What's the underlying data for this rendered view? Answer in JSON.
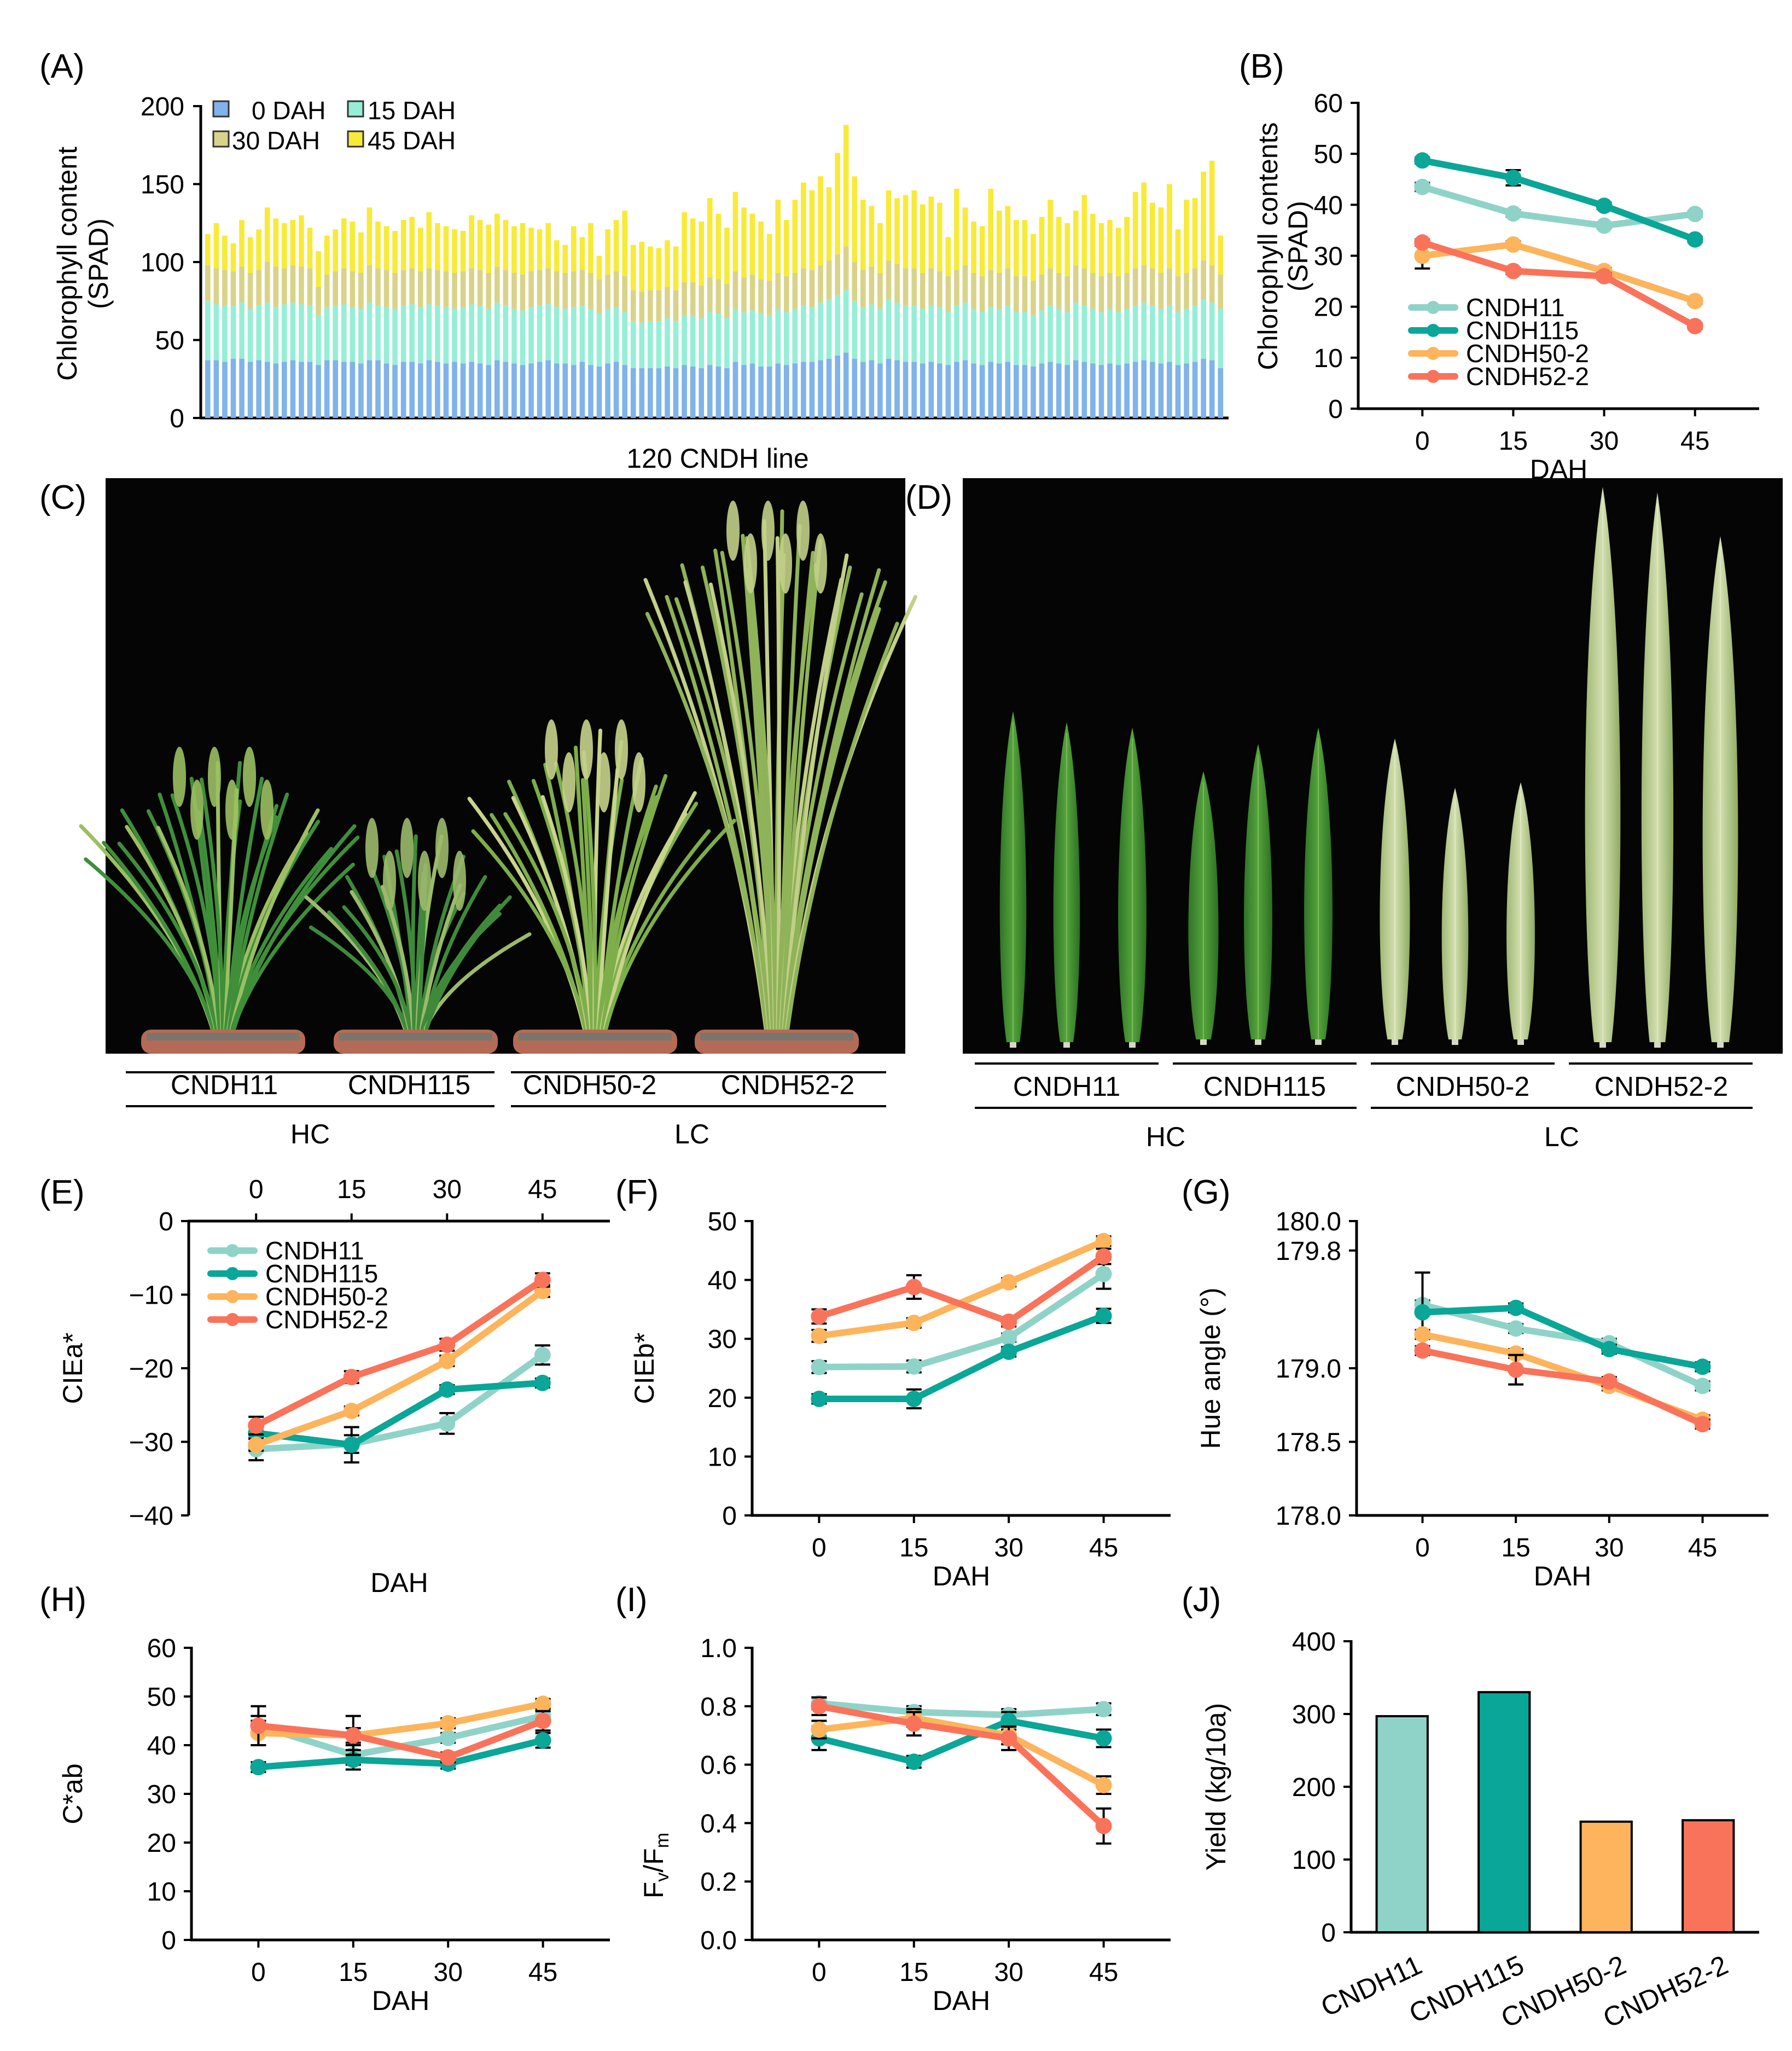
{
  "colors": {
    "CNDH11": "#8fd3c8",
    "CNDH115": "#0aa697",
    "CNDH50-2": "#fdb45c",
    "CNDH52-2": "#f9735a",
    "dah0": "#7fb3ea",
    "dah15": "#95eed6",
    "dah30": "#d9d389",
    "dah45": "#f8ea38",
    "photo_bg": "#050505",
    "pot": "#b56a55",
    "leaf_dark": "#3d8a2e",
    "leaf_light": "#b8cc8a"
  },
  "chart_data": [
    {
      "panel": "(A)",
      "type": "bar",
      "stacked": true,
      "xlabel": "120 CNDH line",
      "ylabel": "Chlorophyll content (SPAD)",
      "ylim": [
        0,
        200
      ],
      "yticks": [
        "0",
        "50",
        "100",
        "150",
        "200"
      ],
      "legend": [
        "0 DAH",
        "15 DAH",
        "30 DAH",
        "45 DAH"
      ],
      "n_lines": 120,
      "cumulative": {
        "0 DAH": [
          37,
          37,
          36,
          38,
          38,
          36,
          37,
          36,
          35,
          36,
          37,
          36,
          36,
          34,
          37,
          37,
          36,
          36,
          35,
          37,
          37,
          35,
          34,
          36,
          36,
          35,
          37,
          36,
          35,
          36,
          35,
          36,
          35,
          34,
          37,
          36,
          35,
          34,
          35,
          36,
          37,
          35,
          35,
          34,
          36,
          34,
          33,
          35,
          36,
          34,
          32,
          32,
          32,
          32,
          33,
          32,
          34,
          33,
          32,
          34,
          33,
          32,
          36,
          34,
          35,
          33,
          33,
          35,
          34,
          35,
          36,
          36,
          37,
          38,
          40,
          42,
          38,
          36,
          37,
          35,
          38,
          37,
          36,
          36,
          35,
          36,
          35,
          34,
          36,
          37,
          35,
          34,
          36,
          35,
          36,
          34,
          34,
          33,
          35,
          36,
          35,
          34,
          37,
          36,
          35,
          34,
          35,
          34,
          35,
          36,
          37,
          36,
          35,
          36,
          34,
          35,
          36,
          38,
          37,
          32
        ],
        "15 DAH": [
          75,
          73,
          72,
          72,
          74,
          70,
          72,
          74,
          71,
          73,
          74,
          73,
          72,
          66,
          71,
          72,
          73,
          71,
          70,
          74,
          72,
          71,
          70,
          72,
          73,
          71,
          73,
          72,
          71,
          70,
          71,
          73,
          72,
          70,
          74,
          72,
          70,
          69,
          71,
          72,
          73,
          71,
          70,
          71,
          72,
          70,
          67,
          70,
          71,
          68,
          62,
          61,
          62,
          62,
          64,
          62,
          66,
          66,
          64,
          68,
          67,
          64,
          70,
          68,
          69,
          67,
          66,
          70,
          68,
          70,
          72,
          71,
          74,
          76,
          79,
          82,
          75,
          71,
          73,
          70,
          76,
          74,
          72,
          72,
          70,
          72,
          71,
          68,
          72,
          74,
          70,
          68,
          71,
          70,
          72,
          68,
          68,
          66,
          69,
          72,
          70,
          68,
          74,
          72,
          70,
          68,
          70,
          68,
          70,
          72,
          74,
          72,
          70,
          72,
          68,
          70,
          72,
          76,
          74,
          70
        ],
        "30 DAH": [
          98,
          96,
          95,
          94,
          97,
          93,
          95,
          100,
          97,
          96,
          98,
          97,
          96,
          84,
          92,
          94,
          96,
          94,
          93,
          98,
          96,
          95,
          93,
          95,
          96,
          94,
          96,
          95,
          94,
          93,
          94,
          96,
          95,
          93,
          97,
          95,
          93,
          92,
          94,
          95,
          96,
          94,
          93,
          94,
          95,
          93,
          89,
          92,
          94,
          91,
          82,
          81,
          82,
          82,
          84,
          82,
          87,
          87,
          85,
          90,
          89,
          86,
          94,
          90,
          92,
          89,
          88,
          93,
          91,
          93,
          96,
          95,
          98,
          101,
          105,
          110,
          100,
          95,
          97,
          93,
          101,
          99,
          96,
          96,
          93,
          96,
          94,
          91,
          95,
          98,
          93,
          91,
          95,
          93,
          96,
          91,
          91,
          88,
          92,
          96,
          93,
          91,
          98,
          96,
          93,
          91,
          93,
          91,
          93,
          96,
          98,
          96,
          93,
          96,
          91,
          93,
          96,
          101,
          98,
          92
        ],
        "45 DAH": [
          118,
          125,
          117,
          112,
          127,
          116,
          121,
          135,
          128,
          125,
          127,
          130,
          122,
          107,
          117,
          121,
          128,
          126,
          119,
          135,
          126,
          123,
          120,
          127,
          129,
          122,
          132,
          125,
          123,
          121,
          120,
          130,
          127,
          124,
          131,
          127,
          123,
          125,
          122,
          121,
          125,
          114,
          111,
          123,
          116,
          125,
          104,
          121,
          127,
          133,
          111,
          113,
          110,
          109,
          114,
          110,
          132,
          128,
          126,
          141,
          131,
          122,
          145,
          135,
          131,
          126,
          118,
          140,
          127,
          140,
          151,
          146,
          155,
          148,
          170,
          188,
          155,
          140,
          136,
          125,
          146,
          141,
          143,
          146,
          137,
          142,
          138,
          116,
          147,
          135,
          126,
          123,
          147,
          133,
          136,
          127,
          127,
          118,
          129,
          140,
          129,
          125,
          133,
          143,
          131,
          125,
          127,
          122,
          129,
          145,
          151,
          138,
          135,
          150,
          121,
          140,
          141,
          158,
          165,
          117
        ]
      }
    },
    {
      "panel": "(B)",
      "type": "line",
      "xlabel": "DAH",
      "ylabel": "Chlorophyll contents (SPAD)",
      "x": [
        0,
        15,
        30,
        45
      ],
      "ylim": [
        0,
        60
      ],
      "yticks": [
        "0",
        "10",
        "20",
        "30",
        "40",
        "50",
        "60"
      ],
      "xticks": [
        "0",
        "15",
        "30",
        "45"
      ],
      "legend_position": "bottom-left",
      "series": [
        {
          "name": "CNDH11",
          "values": [
            43.5,
            38.3,
            35.9,
            38.2
          ],
          "err": [
            0.8,
            0.6,
            0.5,
            0.5
          ]
        },
        {
          "name": "CNDH115",
          "values": [
            48.7,
            45.3,
            39.8,
            33.2
          ],
          "err": [
            0.6,
            1.5,
            0.6,
            0.5
          ]
        },
        {
          "name": "CNDH50-2",
          "values": [
            30.0,
            32.2,
            27.0,
            21.1
          ],
          "err": [
            2.5,
            0.6,
            0.6,
            0.5
          ]
        },
        {
          "name": "CNDH52-2",
          "values": [
            32.6,
            27.0,
            26.0,
            16.2
          ],
          "err": [
            0.6,
            0.6,
            0.6,
            0.5
          ]
        }
      ]
    },
    {
      "panel": "(E)",
      "type": "line",
      "xlabel": "DAH",
      "ylabel": "CIEa*",
      "x": [
        0,
        15,
        30,
        45
      ],
      "xaxis_position": "top",
      "ylim": [
        -40,
        0
      ],
      "yticks": [
        "0",
        "−10",
        "−20",
        "−30",
        "−40"
      ],
      "xticks": [
        "0",
        "15",
        "30",
        "45"
      ],
      "legend_position": "top-left",
      "series": [
        {
          "name": "CNDH11",
          "values": [
            -31.0,
            -30.3,
            -27.5,
            -18.2
          ],
          "err": [
            1.5,
            1.2,
            1.4,
            1.3
          ]
        },
        {
          "name": "CNDH115",
          "values": [
            -28.8,
            -30.4,
            -22.9,
            -22.0
          ],
          "err": [
            1.3,
            2.4,
            0.6,
            0.6
          ]
        },
        {
          "name": "CNDH50-2",
          "values": [
            -30.4,
            -25.8,
            -19.0,
            -9.5
          ],
          "err": [
            0.8,
            0.6,
            0.7,
            0.8
          ]
        },
        {
          "name": "CNDH52-2",
          "values": [
            -27.8,
            -21.2,
            -16.8,
            -8.0
          ],
          "err": [
            1.2,
            0.8,
            0.8,
            0.9
          ]
        }
      ]
    },
    {
      "panel": "(F)",
      "type": "line",
      "xlabel": "DAH",
      "ylabel": "CIEb*",
      "x": [
        0,
        15,
        30,
        45
      ],
      "ylim": [
        0,
        50
      ],
      "yticks": [
        "0",
        "10",
        "20",
        "30",
        "40",
        "50"
      ],
      "xticks": [
        "0",
        "15",
        "30",
        "45"
      ],
      "series": [
        {
          "name": "CNDH11",
          "values": [
            25.2,
            25.3,
            30.2,
            41.0
          ],
          "err": [
            1.0,
            1.0,
            0.7,
            2.5
          ]
        },
        {
          "name": "CNDH115",
          "values": [
            19.8,
            19.8,
            27.8,
            33.9
          ],
          "err": [
            0.8,
            1.6,
            0.8,
            1.2
          ]
        },
        {
          "name": "CNDH50-2",
          "values": [
            30.5,
            32.7,
            39.6,
            46.6
          ],
          "err": [
            1.0,
            0.8,
            0.7,
            0.8
          ]
        },
        {
          "name": "CNDH52-2",
          "values": [
            33.8,
            38.8,
            32.9,
            44.0
          ],
          "err": [
            1.2,
            2.0,
            0.8,
            1.3
          ]
        }
      ]
    },
    {
      "panel": "(G)",
      "type": "line",
      "xlabel": "DAH",
      "ylabel": "Hue angle (°)",
      "x": [
        0,
        15,
        30,
        45
      ],
      "ylim": [
        178.0,
        180.0
      ],
      "yticks": [
        "178.0",
        "178.5",
        "179.0",
        "179.8",
        "180.0"
      ],
      "xticks": [
        "0",
        "15",
        "30",
        "45"
      ],
      "series": [
        {
          "name": "CNDH11",
          "values": [
            179.43,
            179.27,
            179.17,
            178.88
          ],
          "err": [
            0.03,
            0.03,
            0.03,
            0.03
          ]
        },
        {
          "name": "CNDH115",
          "values": [
            179.38,
            179.41,
            179.13,
            179.01
          ],
          "err": [
            0.27,
            0.03,
            0.03,
            0.03
          ]
        },
        {
          "name": "CNDH50-2",
          "values": [
            179.23,
            179.1,
            178.88,
            178.65
          ],
          "err": [
            0.03,
            0.03,
            0.03,
            0.03
          ]
        },
        {
          "name": "CNDH52-2",
          "values": [
            179.12,
            178.99,
            178.91,
            178.62
          ],
          "err": [
            0.03,
            0.1,
            0.03,
            0.03
          ]
        }
      ]
    },
    {
      "panel": "(H)",
      "type": "line",
      "xlabel": "DAH",
      "ylabel": "C*ab",
      "x": [
        0,
        15,
        30,
        45
      ],
      "ylim": [
        0,
        60
      ],
      "yticks": [
        "0",
        "10",
        "20",
        "30",
        "40",
        "50",
        "60"
      ],
      "xticks": [
        "0",
        "15",
        "30",
        "45"
      ],
      "series": [
        {
          "name": "CNDH11",
          "values": [
            44.0,
            38.0,
            41.5,
            46.0
          ],
          "err": [
            2.0,
            2.0,
            1.0,
            1.0
          ]
        },
        {
          "name": "CNDH115",
          "values": [
            35.5,
            37.0,
            36.2,
            41.0
          ],
          "err": [
            1.0,
            2.0,
            1.0,
            1.5
          ]
        },
        {
          "name": "CNDH50-2",
          "values": [
            42.5,
            42.0,
            44.5,
            48.5
          ],
          "err": [
            2.5,
            1.5,
            1.0,
            1.0
          ]
        },
        {
          "name": "CNDH52-2",
          "values": [
            44.0,
            42.0,
            37.5,
            45.0
          ],
          "err": [
            4.0,
            4.0,
            1.0,
            2.0
          ]
        }
      ]
    },
    {
      "panel": "(I)",
      "type": "line",
      "xlabel": "DAH",
      "ylabel": "Fv/Fm",
      "x": [
        0,
        15,
        30,
        45
      ],
      "ylim": [
        0.0,
        1.0
      ],
      "yticks": [
        "0.0",
        "0.2",
        "0.4",
        "0.6",
        "0.8",
        "1.0"
      ],
      "xticks": [
        "0",
        "15",
        "30",
        "45"
      ],
      "series": [
        {
          "name": "CNDH11",
          "values": [
            0.81,
            0.78,
            0.77,
            0.79
          ],
          "err": [
            0.02,
            0.02,
            0.02,
            0.02
          ]
        },
        {
          "name": "CNDH115",
          "values": [
            0.69,
            0.61,
            0.75,
            0.69
          ],
          "err": [
            0.04,
            0.02,
            0.03,
            0.03
          ]
        },
        {
          "name": "CNDH50-2",
          "values": [
            0.72,
            0.76,
            0.7,
            0.53
          ],
          "err": [
            0.03,
            0.03,
            0.03,
            0.03
          ]
        },
        {
          "name": "CNDH52-2",
          "values": [
            0.8,
            0.74,
            0.69,
            0.39
          ],
          "err": [
            0.03,
            0.04,
            0.04,
            0.06
          ]
        }
      ]
    },
    {
      "panel": "(J)",
      "type": "bar",
      "xlabel": "",
      "ylabel": "Yield (kg/10a)",
      "categories": [
        "CNDH11",
        "CNDH115",
        "CNDH50-2",
        "CNDH52-2"
      ],
      "values": [
        297,
        330,
        152,
        154
      ],
      "ylim": [
        0,
        400
      ],
      "yticks": [
        "0",
        "100",
        "200",
        "300",
        "400"
      ]
    }
  ],
  "photos": {
    "C": {
      "label": "(C)",
      "groups": [
        "CNDH11",
        "CNDH115",
        "CNDH50-2",
        "CNDH52-2"
      ],
      "categories": [
        "HC",
        "LC"
      ],
      "description": "Whole rice plants in pots"
    },
    "D": {
      "label": "(D)",
      "groups": [
        "CNDH11",
        "CNDH115",
        "CNDH50-2",
        "CNDH52-2"
      ],
      "categories": [
        "HC",
        "LC"
      ],
      "description": "Flag leaves"
    }
  }
}
